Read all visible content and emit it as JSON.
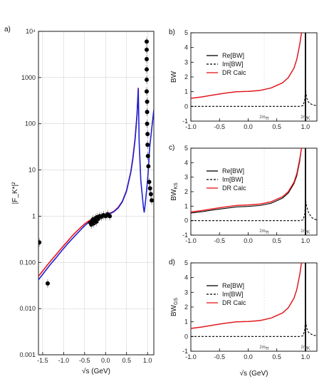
{
  "chart_data": [
    {
      "panel_label": "a)",
      "type": "scatter",
      "xlabel": "√s (GeV)",
      "ylabel": "|F_K*|²",
      "xlim": [
        -1.6,
        1.15
      ],
      "ylim": [
        0.001,
        10000
      ],
      "yscale": "log",
      "grid": true,
      "xticks": [
        -1.5,
        -1.0,
        -0.5,
        0.0,
        0.5,
        1.0
      ],
      "xtick_labels": [
        "-1.5",
        "-1.0",
        "-0.5",
        "0.0",
        "0.5",
        "1.0"
      ],
      "yticks": [
        0.001,
        0.01,
        0.1,
        1,
        10,
        100,
        1000,
        10000
      ],
      "ytick_labels": [
        "0.001",
        "0.010",
        "0.100",
        "1",
        "10",
        "100",
        "1000",
        "10⁴"
      ],
      "series": [
        {
          "color": "#e8141a",
          "x": [
            -1.6,
            -1.5,
            -1.4,
            -1.3,
            -1.2,
            -1.1,
            -1.0,
            -0.9,
            -0.8,
            -0.7,
            -0.6,
            -0.5,
            -0.4,
            -0.3,
            -0.2,
            -0.1,
            0.0,
            0.1,
            0.2,
            0.3,
            0.4,
            0.5,
            0.6,
            0.65,
            0.7,
            0.75,
            0.78
          ],
          "y": [
            0.05,
            0.065,
            0.085,
            0.11,
            0.14,
            0.18,
            0.23,
            0.29,
            0.37,
            0.46,
            0.56,
            0.68,
            0.79,
            0.88,
            0.96,
            1.02,
            1.08,
            1.15,
            1.28,
            1.55,
            2.1,
            3.6,
            9,
            18,
            45,
            160,
            600
          ]
        },
        {
          "color": "#1f1fd6",
          "x": [
            -1.6,
            -1.5,
            -1.4,
            -1.3,
            -1.2,
            -1.1,
            -1.0,
            -0.9,
            -0.8,
            -0.7,
            -0.6,
            -0.5,
            -0.4,
            -0.3,
            -0.2,
            -0.1,
            0.0,
            0.1,
            0.2,
            0.3,
            0.4,
            0.5,
            0.6,
            0.65,
            0.7,
            0.75,
            0.78,
            0.8,
            0.84,
            0.88,
            0.9,
            0.92,
            0.95,
            1.0,
            1.02,
            1.05,
            1.1,
            1.15
          ],
          "y": [
            0.042,
            0.055,
            0.072,
            0.094,
            0.12,
            0.155,
            0.2,
            0.255,
            0.32,
            0.4,
            0.5,
            0.62,
            0.74,
            0.84,
            0.93,
            0.99,
            1.05,
            1.12,
            1.25,
            1.5,
            2.05,
            3.5,
            8.8,
            17,
            43,
            150,
            580,
            40,
            6,
            2.5,
            1.6,
            1.2,
            2,
            6,
            10,
            30,
            80,
            200
          ]
        }
      ],
      "points": [
        {
          "x": -1.58,
          "y": 0.27
        },
        {
          "x": -1.38,
          "y": 0.035
        },
        {
          "x": -0.36,
          "y": 0.72
        },
        {
          "x": -0.34,
          "y": 0.66
        },
        {
          "x": -0.32,
          "y": 0.78
        },
        {
          "x": -0.3,
          "y": 0.85
        },
        {
          "x": -0.28,
          "y": 0.7
        },
        {
          "x": -0.26,
          "y": 0.82
        },
        {
          "x": -0.24,
          "y": 0.9
        },
        {
          "x": -0.22,
          "y": 0.76
        },
        {
          "x": -0.2,
          "y": 0.95
        },
        {
          "x": -0.17,
          "y": 0.88
        },
        {
          "x": -0.14,
          "y": 1.0
        },
        {
          "x": -0.1,
          "y": 0.97
        },
        {
          "x": -0.05,
          "y": 1.05
        },
        {
          "x": 0.0,
          "y": 1.0
        },
        {
          "x": 0.05,
          "y": 1.1
        },
        {
          "x": 0.1,
          "y": 1.0
        },
        {
          "x": 0.98,
          "y": 6000
        },
        {
          "x": 0.98,
          "y": 4000
        },
        {
          "x": 0.98,
          "y": 2500
        },
        {
          "x": 0.98,
          "y": 1500
        },
        {
          "x": 0.98,
          "y": 900
        },
        {
          "x": 0.98,
          "y": 500
        },
        {
          "x": 0.99,
          "y": 300
        },
        {
          "x": 0.99,
          "y": 180
        },
        {
          "x": 0.99,
          "y": 100
        },
        {
          "x": 1.0,
          "y": 60
        },
        {
          "x": 1.0,
          "y": 35
        },
        {
          "x": 1.01,
          "y": 20
        },
        {
          "x": 1.02,
          "y": 12
        },
        {
          "x": 1.04,
          "y": 5.5
        },
        {
          "x": 1.06,
          "y": 4
        },
        {
          "x": 1.08,
          "y": 3
        },
        {
          "x": 1.1,
          "y": 2.2
        }
      ]
    },
    {
      "panel_label": "b)",
      "type": "line",
      "ylabel": "BW",
      "xlim": [
        -1.0,
        1.2
      ],
      "ylim": [
        -1,
        5
      ],
      "xticks": [
        -1.0,
        -0.5,
        0.0,
        0.5,
        1.0
      ],
      "xtick_labels": [
        "-1.0",
        "-0.5",
        "0.0",
        "0.5",
        "1.0"
      ],
      "yticks": [
        -1,
        0,
        1,
        2,
        3,
        4,
        5
      ],
      "annotations": [
        "2m_π",
        "2m_K"
      ],
      "legend": [
        "Re[BW]",
        "Im[BW]",
        "DR Calc"
      ],
      "legend_position": "center-left",
      "series": [
        {
          "name": "Re[BW]",
          "style": "solid",
          "color": "#000000",
          "x": [
            -1.0,
            -0.8,
            -0.6,
            -0.4,
            -0.2,
            0.0,
            0.2,
            0.4,
            0.6,
            0.7,
            0.8,
            0.85,
            0.9,
            0.93,
            0.95
          ],
          "y": [
            0.55,
            0.65,
            0.78,
            0.9,
            1.0,
            1.02,
            1.08,
            1.25,
            1.6,
            1.95,
            2.6,
            3.2,
            4.2,
            5.0,
            5.0
          ]
        },
        {
          "name": "Im[BW]",
          "style": "dashed",
          "color": "#000000",
          "x": [
            -1.0,
            0.5,
            0.9,
            0.96,
            0.99,
            1.0,
            1.02,
            1.05,
            1.1,
            1.15,
            1.2
          ],
          "y": [
            0.0,
            0.0,
            0.0,
            0.05,
            0.5,
            1.2,
            0.6,
            0.3,
            0.15,
            0.08,
            0.05
          ]
        },
        {
          "name": "DR Calc",
          "style": "solid",
          "color": "#e8141a",
          "x": [
            -1.0,
            -0.8,
            -0.6,
            -0.4,
            -0.2,
            0.0,
            0.2,
            0.4,
            0.6,
            0.7,
            0.8,
            0.85,
            0.9,
            0.93,
            0.95
          ],
          "y": [
            0.55,
            0.65,
            0.78,
            0.9,
            1.0,
            1.02,
            1.08,
            1.25,
            1.6,
            1.95,
            2.6,
            3.2,
            4.2,
            5.0,
            5.0
          ]
        }
      ]
    },
    {
      "panel_label": "c)",
      "type": "line",
      "ylabel": "BW_KS",
      "xlim": [
        -1.0,
        1.2
      ],
      "ylim": [
        -1,
        5
      ],
      "xticks": [
        -1.0,
        -0.5,
        0.0,
        0.5,
        1.0
      ],
      "xtick_labels": [
        "-1.0",
        "-0.5",
        "0.0",
        "0.5",
        "1.0"
      ],
      "yticks": [
        -1,
        0,
        1,
        2,
        3,
        4,
        5
      ],
      "annotations": [
        "2m_π",
        "2m_K"
      ],
      "legend": [
        "Re[BW]",
        "Im[BW]",
        "DR Calc"
      ],
      "legend_position": "center-left",
      "series": [
        {
          "name": "Re[BW]",
          "style": "solid",
          "color": "#000000",
          "x": [
            -1.0,
            -0.8,
            -0.6,
            -0.4,
            -0.2,
            0.0,
            0.2,
            0.4,
            0.6,
            0.7,
            0.8,
            0.85,
            0.9,
            0.93,
            0.95
          ],
          "y": [
            0.52,
            0.62,
            0.74,
            0.85,
            0.95,
            0.98,
            1.04,
            1.2,
            1.55,
            1.9,
            2.55,
            3.1,
            4.1,
            5.0,
            5.0
          ]
        },
        {
          "name": "Im[BW]",
          "style": "dashed",
          "color": "#000000",
          "x": [
            -1.0,
            0.5,
            0.9,
            0.96,
            0.99,
            1.0,
            1.02,
            1.05,
            1.1,
            1.15,
            1.2
          ],
          "y": [
            0.0,
            0.0,
            0.0,
            0.05,
            0.5,
            1.5,
            1.0,
            0.6,
            0.25,
            0.1,
            0.05
          ]
        },
        {
          "name": "DR Calc",
          "style": "solid",
          "color": "#e8141a",
          "x": [
            -1.0,
            -0.8,
            -0.6,
            -0.4,
            -0.2,
            0.0,
            0.2,
            0.4,
            0.6,
            0.7,
            0.8,
            0.85,
            0.9,
            0.93,
            0.95
          ],
          "y": [
            0.6,
            0.7,
            0.83,
            0.95,
            1.05,
            1.08,
            1.14,
            1.3,
            1.65,
            2.0,
            2.65,
            3.25,
            4.25,
            5.0,
            5.0
          ]
        }
      ]
    },
    {
      "panel_label": "d)",
      "type": "line",
      "ylabel": "BW_GS",
      "xlabel": "√s (GeV)",
      "xlim": [
        -1.0,
        1.2
      ],
      "ylim": [
        -1,
        5
      ],
      "xticks": [
        -1.0,
        -0.5,
        0.0,
        0.5,
        1.0
      ],
      "xtick_labels": [
        "-1.0",
        "-0.5",
        "0.0",
        "0.5",
        "1.0"
      ],
      "yticks": [
        -1,
        0,
        1,
        2,
        3,
        4,
        5
      ],
      "annotations": [
        "2m_π",
        "2m_K"
      ],
      "legend": [
        "Re[BW]",
        "Im[BW]",
        "DR Calc"
      ],
      "legend_position": "center-left",
      "series": [
        {
          "name": "Re[BW]",
          "style": "solid",
          "color": "#000000",
          "x": [
            -1.0,
            -0.8,
            -0.6,
            -0.4,
            -0.2,
            0.0,
            0.2,
            0.4,
            0.6,
            0.7,
            0.8,
            0.85,
            0.9,
            0.93,
            0.95
          ],
          "y": [
            0.55,
            0.65,
            0.78,
            0.9,
            1.0,
            1.02,
            1.08,
            1.25,
            1.6,
            1.95,
            2.6,
            3.2,
            4.2,
            5.0,
            5.0
          ]
        },
        {
          "name": "Im[BW]",
          "style": "dashed",
          "color": "#000000",
          "x": [
            -1.0,
            0.5,
            0.9,
            0.96,
            0.99,
            1.0,
            1.02,
            1.05,
            1.1,
            1.15,
            1.2
          ],
          "y": [
            0.0,
            0.0,
            0.0,
            0.05,
            0.5,
            1.2,
            0.6,
            0.3,
            0.15,
            0.08,
            0.05
          ]
        },
        {
          "name": "DR Calc",
          "style": "solid",
          "color": "#e8141a",
          "x": [
            -1.0,
            -0.8,
            -0.6,
            -0.4,
            -0.2,
            0.0,
            0.2,
            0.4,
            0.6,
            0.7,
            0.8,
            0.85,
            0.9,
            0.93,
            0.95
          ],
          "y": [
            0.55,
            0.65,
            0.78,
            0.9,
            1.0,
            1.02,
            1.08,
            1.25,
            1.6,
            1.95,
            2.6,
            3.2,
            4.2,
            5.0,
            5.0
          ]
        }
      ]
    }
  ]
}
